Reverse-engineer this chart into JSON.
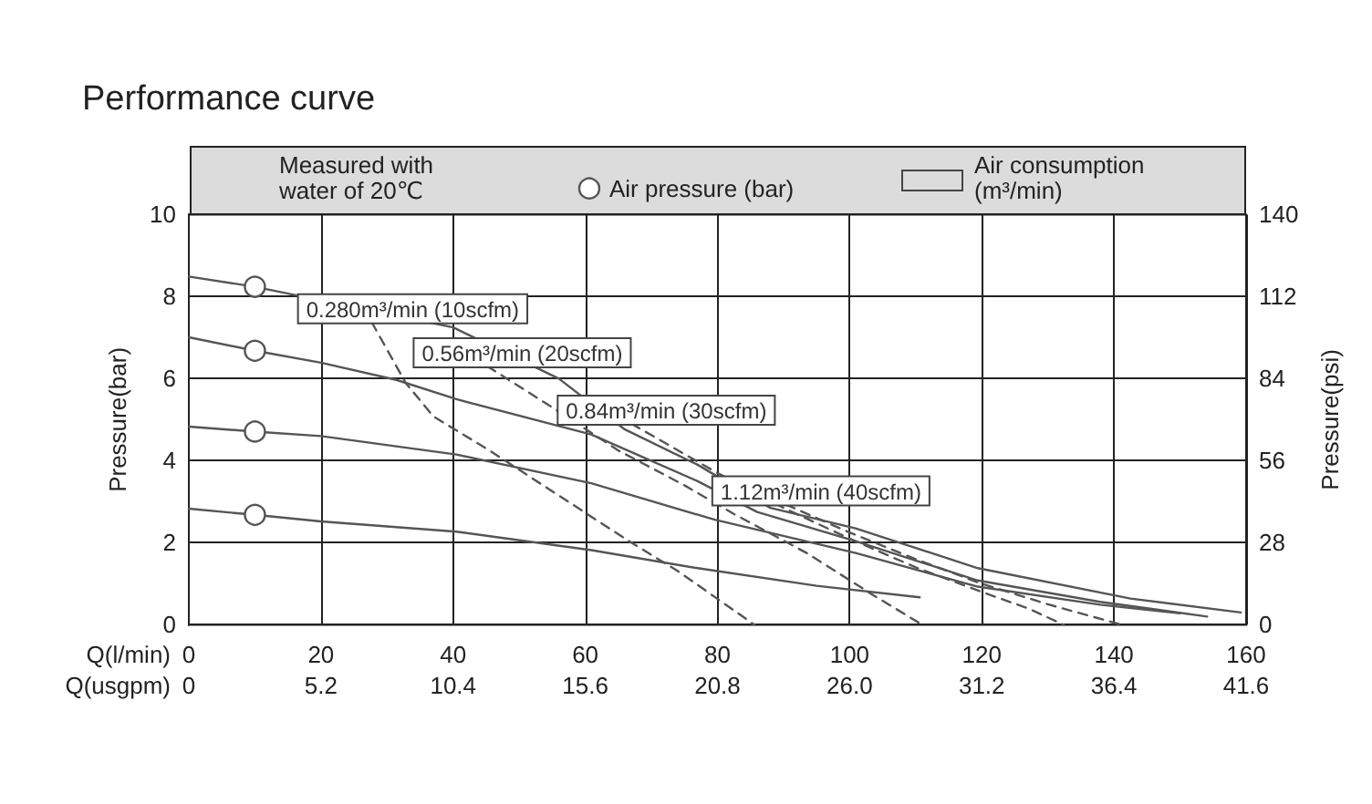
{
  "chart_data": {
    "type": "line",
    "title": "Performance curve",
    "xlabel": "Q(l/min)",
    "x2label": "Q(usgpm)",
    "ylabel": "Pressure(bar)",
    "y2label": "Pressure(psi)",
    "xlim": [
      0,
      160
    ],
    "xticks": [
      0,
      20,
      40,
      60,
      80,
      100,
      120,
      140,
      160
    ],
    "x2lim": [
      0,
      41.6
    ],
    "x2ticks": [
      0,
      5.2,
      10.4,
      15.6,
      20.8,
      {
        "value": 26,
        "label": "26.0"
      },
      31.2,
      36.4,
      41.6
    ],
    "ylim": [
      0,
      10
    ],
    "yticks": [
      0,
      2,
      4,
      6,
      8,
      10
    ],
    "y2lim": [
      0,
      140
    ],
    "y2ticks": [
      0,
      28,
      56,
      84,
      112,
      140
    ],
    "grid": true,
    "legend": "top",
    "annotations": [
      "Measured with water of 20℃",
      "Air consumption (m³/min)"
    ],
    "series": [
      {
        "color": "#555555",
        "line_style": "solid",
        "x": [
          0,
          10,
          40,
          56,
          66,
          77,
          88,
          100.9,
          119.4,
          142.5,
          159.2
        ],
        "values": [
          8.49,
          8.24,
          7.25,
          6,
          4.76,
          3.9,
          2.85,
          2.35,
          1.38,
          0.64,
          0.3
        ]
      },
      {
        "color": "#555555",
        "line_style": "solid",
        "x": [
          0,
          10,
          20,
          31.4,
          40.5,
          60.9,
          77,
          86,
          100.9,
          119.4,
          137.9,
          154.1
        ],
        "values": [
          7.01,
          6.68,
          6.39,
          5.97,
          5.5,
          4.64,
          3.5,
          2.75,
          2.04,
          1.08,
          0.56,
          0.2
        ]
      },
      {
        "color": "#555555",
        "line_style": "solid",
        "x": [
          0,
          10,
          20,
          40.5,
          60.9,
          79.6,
          100.9,
          119.4,
          137.9,
          150
        ],
        "values": [
          4.83,
          4.71,
          4.6,
          4.15,
          3.45,
          2.56,
          1.75,
          0.93,
          0.49,
          0.28
        ]
      },
      {
        "color": "#555555",
        "line_style": "solid",
        "x": [
          0,
          10,
          20,
          40.5,
          60.9,
          77,
          95,
          110.6
        ],
        "values": [
          2.83,
          2.68,
          2.52,
          2.27,
          1.82,
          1.38,
          0.95,
          0.67
        ]
      },
      {
        "name": "0.280m³/min (10scfm)",
        "color": "#555555",
        "line_style": "dashed",
        "x": [
          27.7,
          32.8,
          37,
          45.3,
          66.6,
          74,
          85.6
        ],
        "values": [
          7.37,
          5.9,
          5.08,
          4.27,
          2.04,
          1.31,
          0
        ]
      },
      {
        "name": "0.56m³/min (20scfm)",
        "color": "#555555",
        "line_style": "dashed",
        "x": [
          45.2,
          55,
          65,
          75,
          82.4,
          93.5,
          103.7,
          111
        ],
        "values": [
          6.3,
          5.3,
          4.25,
          3.4,
          2.71,
          1.75,
          0.71,
          0
        ]
      },
      {
        "name": "0.84m³/min (30scfm)",
        "color": "#555555",
        "line_style": "dashed",
        "x": [
          67,
          80,
          90,
          100,
          110,
          120,
          127,
          132.4
        ],
        "values": [
          4.9,
          3.7,
          2.85,
          2.1,
          1.4,
          0.8,
          0.4,
          0
        ]
      },
      {
        "name": "1.12m³/min (40scfm)",
        "color": "#555555",
        "line_style": "dashed",
        "x": [
          90.4,
          100,
          110,
          120,
          130,
          141.2
        ],
        "values": [
          2.93,
          2.25,
          1.6,
          1,
          0.5,
          0
        ]
      },
      {
        "name": "Air pressure (bar)",
        "type": "scatter",
        "marker": "circle",
        "color": "#555555",
        "x": [
          10,
          10,
          10,
          10
        ],
        "values": [
          8.24,
          6.68,
          4.71,
          2.68
        ]
      }
    ]
  }
}
